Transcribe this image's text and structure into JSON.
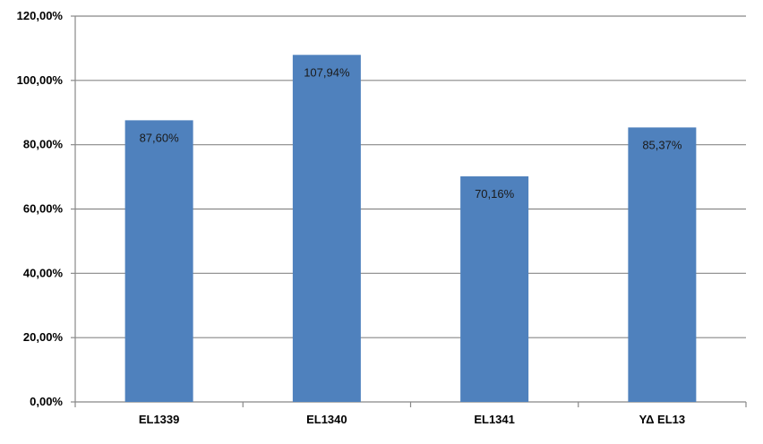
{
  "chart_data": {
    "type": "bar",
    "title": "",
    "xlabel": "",
    "ylabel": "",
    "categories": [
      "EL1339",
      "EL1340",
      "EL1341",
      "ΥΔ EL13"
    ],
    "values": [
      87.6,
      107.94,
      70.16,
      85.37
    ],
    "data_labels": [
      "87,60%",
      "107,94%",
      "70,16%",
      "85,37%"
    ],
    "ylim": [
      0,
      120
    ],
    "yticks": [
      0,
      20,
      40,
      60,
      80,
      100,
      120
    ],
    "ytick_labels": [
      "0,00%",
      "20,00%",
      "40,00%",
      "60,00%",
      "80,00%",
      "100,00%",
      "120,00%"
    ],
    "grid": true,
    "legend": "none",
    "bar_color": "#4F81BD",
    "grid_color": "#888888"
  }
}
